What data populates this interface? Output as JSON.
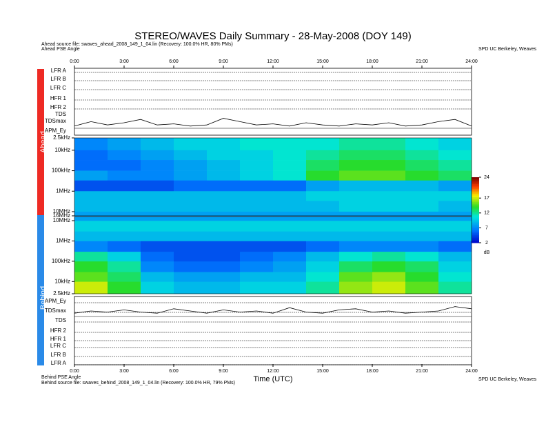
{
  "title": "STEREO/WAVES Daily Summary - 28-May-2008 (DOY 149)",
  "header": {
    "ahead_source": "Ahead source file: swaves_ahead_2008_149_1_04.lin (Recovery: 100.0% HR, 80% PMs)",
    "ahead_angle": "Ahead PSE Angle",
    "credit": "SPD UC Berkeley, Weaves"
  },
  "footer": {
    "behind_angle": "Behind PSE Angle",
    "behind_source": "Behind source file: swaves_behind_2008_149_1_04.lin (Recovery: 100.0% HR, 79% PMs)",
    "credit": "SPD UC Berkeley, Weaves"
  },
  "x_label": "Time (UTC)",
  "side_labels": {
    "ahead": "Ahead",
    "behind": "Behind"
  },
  "panel_labels": {
    "ahead": [
      "LFR A",
      "LFR B",
      "LFR C",
      "HFR 1",
      "HFR 2",
      "TDS",
      "TDSmax",
      "APM_Ey"
    ],
    "behind": [
      "APM_Ey",
      "TDSmax",
      "TDS",
      "HFR 2",
      "HFR 1",
      "LFR C",
      "LFR B",
      "LFR A"
    ]
  },
  "time_axis": {
    "xlim": [
      0,
      24
    ],
    "xticks": [
      {
        "value": 0,
        "label": "0:00"
      },
      {
        "value": 3,
        "label": "3:00"
      },
      {
        "value": 6,
        "label": "6:00"
      },
      {
        "value": 9,
        "label": "9:00"
      },
      {
        "value": 12,
        "label": "12:00"
      },
      {
        "value": 15,
        "label": "15:00"
      },
      {
        "value": 18,
        "label": "18:00"
      },
      {
        "value": 21,
        "label": "21:00"
      },
      {
        "value": 24,
        "label": "24:00"
      }
    ]
  },
  "colorbar": {
    "zlim": [
      2,
      24
    ],
    "zticks": [
      2,
      7,
      12,
      17,
      24
    ],
    "label": "dB"
  },
  "chart_data": [
    {
      "type": "heatmap",
      "name": "Ahead",
      "log_y": true,
      "y_direction": "down",
      "ylim": [
        2.5,
        16000
      ],
      "yticks": [
        {
          "value": 2.5,
          "label": "2.5kHz"
        },
        {
          "value": 10,
          "label": "10kHz"
        },
        {
          "value": 100,
          "label": "100kHz"
        },
        {
          "value": 1000,
          "label": "1MHz"
        },
        {
          "value": 10000,
          "label": "10MHz"
        },
        {
          "value": 16000,
          "label": "16MHz"
        }
      ],
      "x_bins": [
        0,
        2,
        4,
        6,
        8,
        10,
        12,
        14,
        16,
        18,
        20,
        22,
        24
      ],
      "y_bins": [
        2.5,
        10,
        30,
        100,
        300,
        1000,
        3000,
        10000,
        16000
      ],
      "values": [
        [
          7,
          8,
          9,
          10,
          10,
          11,
          11,
          11,
          12,
          12,
          11,
          10
        ],
        [
          6,
          7,
          8,
          9,
          10,
          10,
          11,
          12,
          13,
          13,
          12,
          11
        ],
        [
          6,
          6,
          7,
          8,
          9,
          10,
          11,
          13,
          14,
          14,
          13,
          12
        ],
        [
          8,
          7,
          7,
          8,
          9,
          10,
          11,
          14,
          15,
          15,
          14,
          13
        ],
        [
          5,
          5,
          5,
          6,
          6,
          6,
          6,
          8,
          9,
          9,
          9,
          8
        ],
        [
          9,
          9,
          9,
          9,
          9,
          9,
          9,
          10,
          10,
          10,
          10,
          10
        ],
        [
          9,
          9,
          9,
          9,
          9,
          9,
          9,
          9,
          10,
          10,
          10,
          9
        ],
        [
          8,
          8,
          8,
          8,
          8,
          8,
          8,
          8,
          8,
          8,
          8,
          8
        ]
      ]
    },
    {
      "type": "heatmap",
      "name": "Behind",
      "log_y": true,
      "y_direction": "up",
      "ylim": [
        2.5,
        16000
      ],
      "yticks": [
        {
          "value": 10000,
          "label": "10MHz"
        },
        {
          "value": 1000,
          "label": "1MHz"
        },
        {
          "value": 100,
          "label": "100kHz"
        },
        {
          "value": 10,
          "label": "10kHz"
        },
        {
          "value": 2.5,
          "label": "2.5kHz"
        }
      ],
      "x_bins": [
        0,
        2,
        4,
        6,
        8,
        10,
        12,
        14,
        16,
        18,
        20,
        22,
        24
      ],
      "y_bins": [
        2.5,
        10,
        30,
        100,
        300,
        1000,
        3000,
        10000,
        16000
      ],
      "values": [
        [
          17,
          14,
          10,
          9,
          9,
          10,
          10,
          12,
          16,
          17,
          15,
          12
        ],
        [
          15,
          13,
          9,
          8,
          8,
          9,
          9,
          11,
          15,
          16,
          14,
          11
        ],
        [
          14,
          12,
          7,
          6,
          6,
          7,
          8,
          10,
          13,
          14,
          13,
          10
        ],
        [
          12,
          10,
          6,
          5,
          5,
          6,
          7,
          9,
          11,
          12,
          11,
          9
        ],
        [
          7,
          6,
          5,
          5,
          5,
          5,
          5,
          6,
          7,
          7,
          7,
          6
        ],
        [
          9,
          9,
          9,
          9,
          9,
          9,
          9,
          9,
          9,
          9,
          9,
          9
        ],
        [
          10,
          10,
          10,
          10,
          10,
          10,
          10,
          10,
          10,
          10,
          10,
          10
        ],
        [
          8,
          8,
          8,
          8,
          8,
          8,
          8,
          8,
          8,
          8,
          8,
          8
        ]
      ]
    },
    {
      "type": "line",
      "name": "TDSmax",
      "panel": "ahead",
      "ylim": [
        0,
        1
      ],
      "color": "#000000",
      "x": [
        0,
        1,
        2,
        3,
        4,
        5,
        6,
        7,
        8,
        9,
        10,
        11,
        12,
        13,
        14,
        15,
        16,
        17,
        18,
        19,
        20,
        21,
        22,
        23,
        24
      ],
      "values": [
        0.2,
        0.6,
        0.3,
        0.5,
        0.8,
        0.3,
        0.4,
        0.2,
        0.3,
        0.9,
        0.6,
        0.3,
        0.4,
        0.2,
        0.5,
        0.3,
        0.2,
        0.4,
        0.3,
        0.5,
        0.2,
        0.3,
        0.6,
        0.8,
        0.2
      ]
    },
    {
      "type": "line",
      "name": "TDSmax",
      "panel": "behind",
      "ylim": [
        0,
        1
      ],
      "color": "#000000",
      "x": [
        0,
        1,
        2,
        3,
        4,
        5,
        6,
        7,
        8,
        9,
        10,
        11,
        12,
        13,
        14,
        15,
        16,
        17,
        18,
        19,
        20,
        21,
        22,
        23,
        24
      ],
      "values": [
        0.3,
        0.5,
        0.4,
        0.6,
        0.4,
        0.3,
        0.7,
        0.5,
        0.3,
        0.6,
        0.4,
        0.5,
        0.3,
        0.8,
        0.4,
        0.3,
        0.6,
        0.7,
        0.4,
        0.5,
        0.3,
        0.4,
        0.5,
        0.9,
        0.7
      ]
    }
  ]
}
